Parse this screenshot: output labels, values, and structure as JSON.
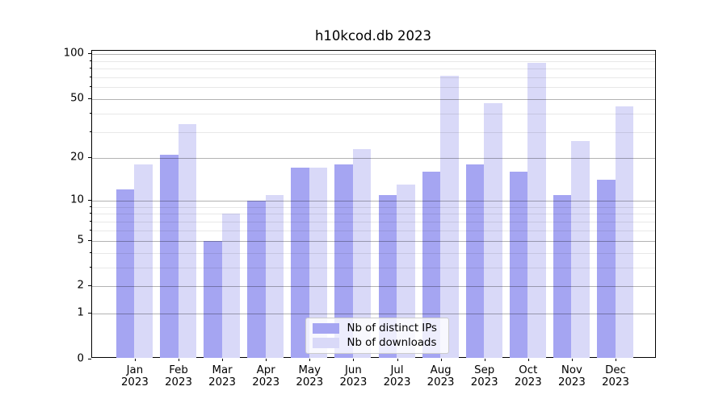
{
  "chart_data": {
    "type": "bar",
    "title": "h10kcod.db 2023",
    "months": [
      "Jan",
      "Feb",
      "Mar",
      "Apr",
      "May",
      "Jun",
      "Jul",
      "Aug",
      "Sep",
      "Oct",
      "Nov",
      "Dec"
    ],
    "year": "2023",
    "series": [
      {
        "name": "Nb of distinct IPs",
        "color": "#a5a5f2",
        "values": [
          12,
          21,
          5,
          10,
          17,
          18,
          11,
          16,
          18,
          16,
          11,
          14
        ]
      },
      {
        "name": "Nb of downloads",
        "color": "#d9d9f8",
        "values": [
          18,
          34,
          8,
          11,
          17,
          23,
          13,
          72,
          47,
          87,
          26,
          45
        ]
      }
    ],
    "yscale": "log1p",
    "ylim": [
      0,
      105
    ],
    "yticks": [
      0,
      1,
      2,
      5,
      10,
      20,
      50,
      100
    ],
    "minor_yticks": [
      3,
      4,
      6,
      7,
      8,
      9,
      30,
      40,
      60,
      70,
      80,
      90
    ],
    "grid": "both",
    "grid_major_color": "rgba(0,0,0,0.30)",
    "grid_minor_color": "rgba(0,0,0,0.09)",
    "legend_position": "lower center"
  }
}
